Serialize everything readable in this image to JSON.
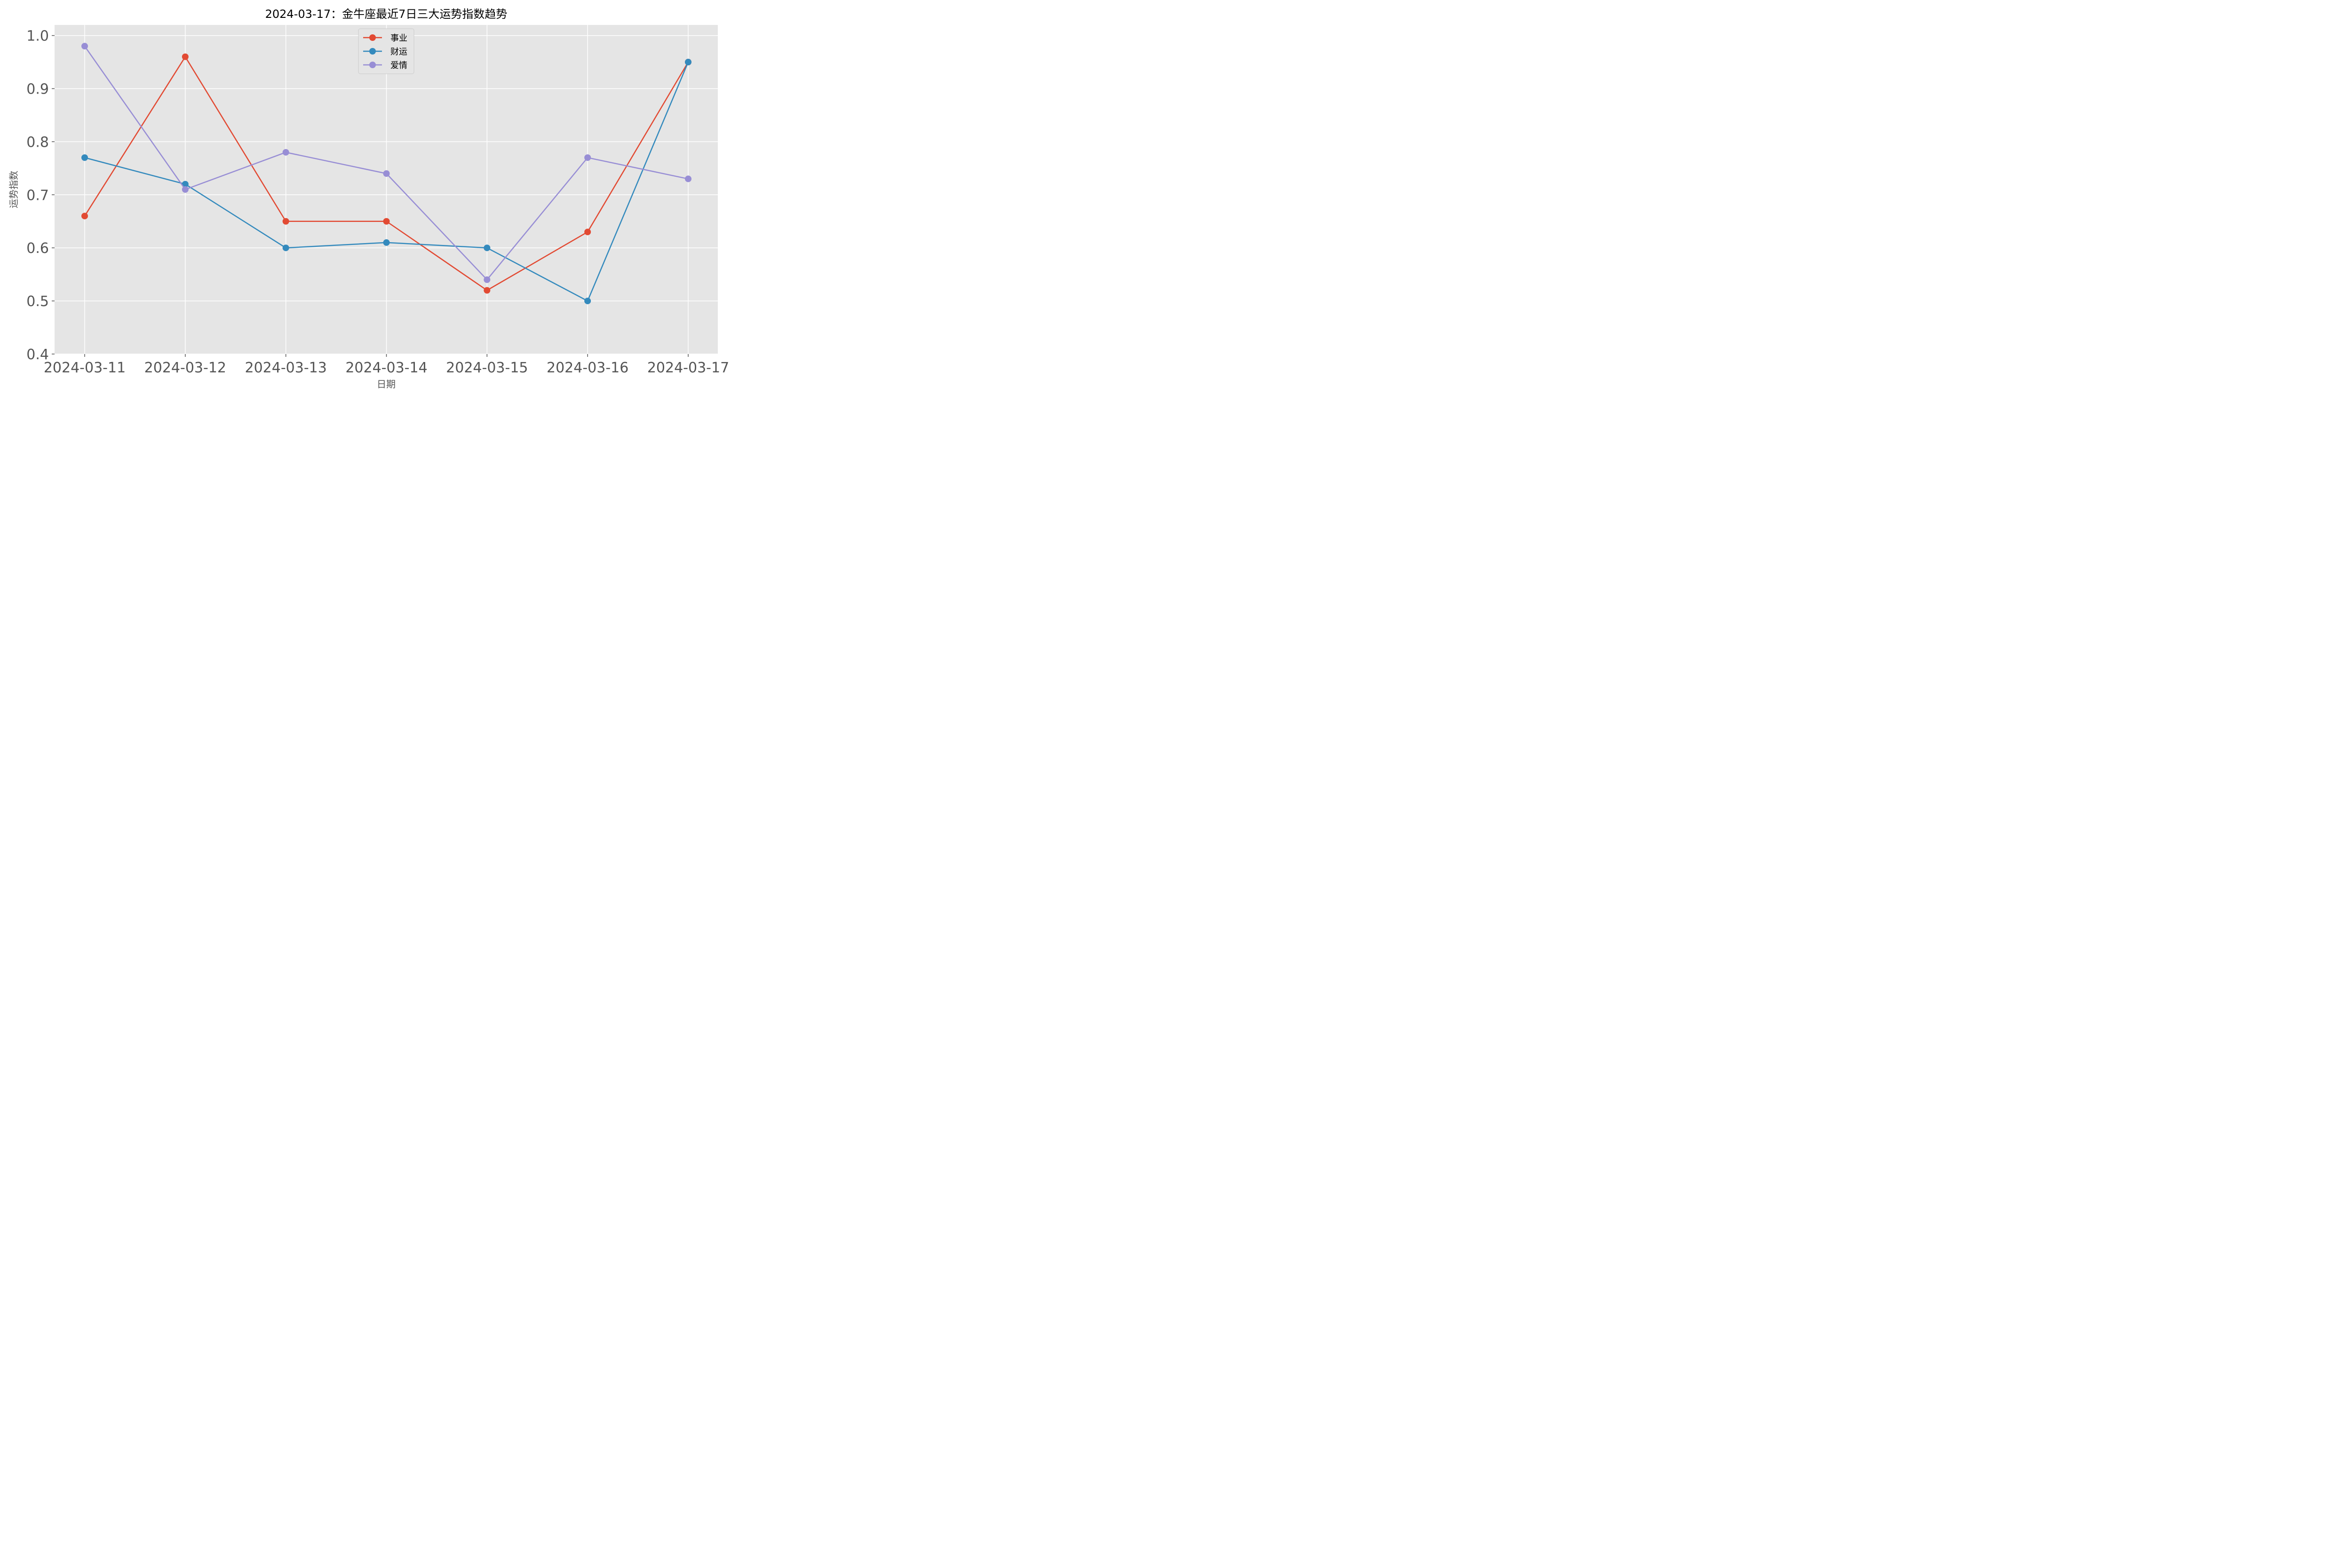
{
  "chart_data": {
    "type": "line",
    "title": "2024-03-17：金牛座最近7日三大运势指数趋势",
    "xlabel": "日期",
    "ylabel": "运势指数",
    "categories": [
      "2024-03-11",
      "2024-03-12",
      "2024-03-13",
      "2024-03-14",
      "2024-03-15",
      "2024-03-16",
      "2024-03-17"
    ],
    "ylim": [
      0.4,
      1.02
    ],
    "yticks": [
      "0.4",
      "0.5",
      "0.6",
      "0.7",
      "0.8",
      "0.9",
      "1.0"
    ],
    "grid": true,
    "legend_position": "top-center",
    "series": [
      {
        "name": "事业",
        "color": "#E24A33",
        "values": [
          0.66,
          0.96,
          0.65,
          0.65,
          0.52,
          0.63,
          0.95
        ]
      },
      {
        "name": "财运",
        "color": "#348ABD",
        "values": [
          0.77,
          0.72,
          0.6,
          0.61,
          0.6,
          0.5,
          0.95
        ]
      },
      {
        "name": "爱情",
        "color": "#988ED5",
        "values": [
          0.98,
          0.71,
          0.78,
          0.74,
          0.54,
          0.77,
          0.73
        ]
      }
    ]
  }
}
